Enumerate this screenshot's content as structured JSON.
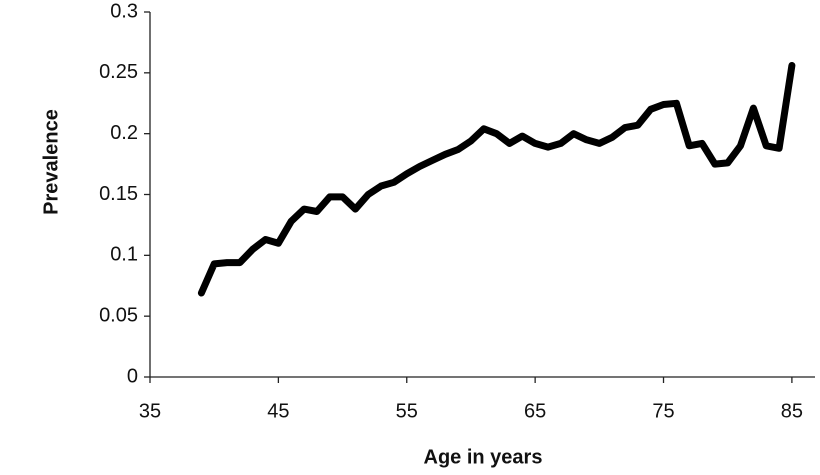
{
  "chart_data": {
    "type": "line",
    "xlabel": "Age in  years",
    "ylabel": "Prevalence",
    "x": [
      39,
      40,
      41,
      42,
      43,
      44,
      45,
      46,
      47,
      48,
      49,
      50,
      51,
      52,
      53,
      54,
      55,
      56,
      57,
      58,
      59,
      60,
      61,
      62,
      63,
      64,
      65,
      66,
      67,
      68,
      69,
      70,
      71,
      72,
      73,
      74,
      75,
      76,
      77,
      78,
      79,
      80,
      81,
      82,
      83,
      84,
      85
    ],
    "series": [
      {
        "name": "Prevalence",
        "color": "#000000",
        "values": [
          0.069,
          0.093,
          0.094,
          0.094,
          0.105,
          0.113,
          0.11,
          0.128,
          0.138,
          0.136,
          0.148,
          0.148,
          0.138,
          0.15,
          0.157,
          0.16,
          0.167,
          0.173,
          0.178,
          0.183,
          0.187,
          0.194,
          0.204,
          0.2,
          0.192,
          0.198,
          0.192,
          0.189,
          0.192,
          0.2,
          0.195,
          0.192,
          0.197,
          0.205,
          0.207,
          0.22,
          0.224,
          0.225,
          0.19,
          0.192,
          0.175,
          0.176,
          0.19,
          0.221,
          0.19,
          0.188,
          0.256
        ]
      }
    ],
    "xlim": [
      35,
      86.8
    ],
    "ylim": [
      0,
      0.3
    ],
    "xticks": [
      35,
      45,
      55,
      65,
      75,
      85
    ],
    "yticks": [
      0,
      0.05,
      0.1,
      0.15,
      0.2,
      0.25,
      0.3
    ],
    "grid": false
  }
}
